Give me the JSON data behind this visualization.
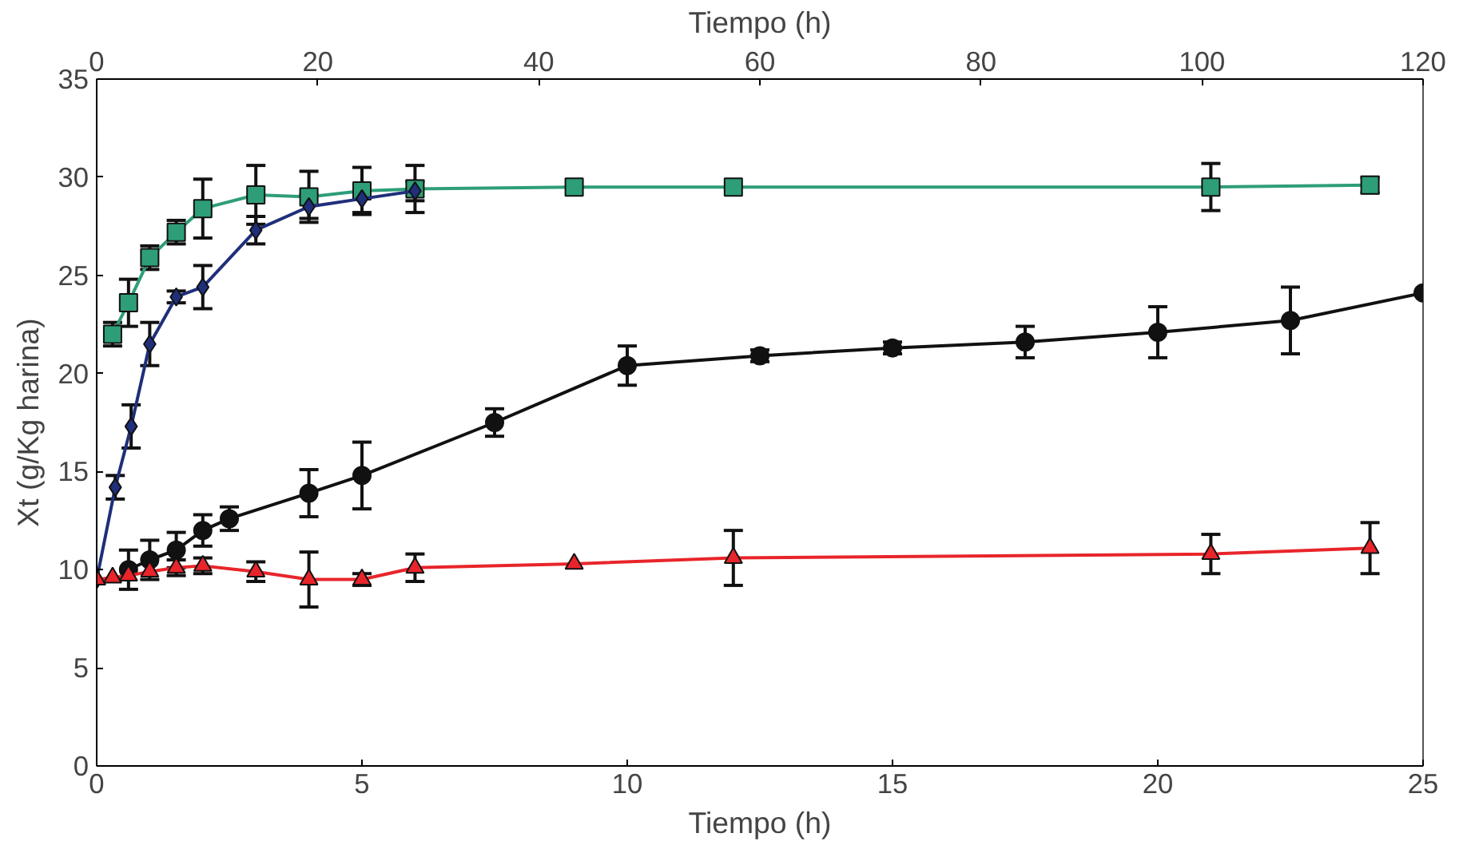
{
  "chart_data": {
    "type": "line",
    "xlabel": "Tiempo (h)",
    "ylabel": "Xt (g/Kg harina)",
    "x2label": "Tiempo (h)",
    "xlim": [
      0,
      25
    ],
    "xticks": [
      0,
      5,
      10,
      15,
      20,
      25
    ],
    "x2lim": [
      0,
      120
    ],
    "x2ticks": [
      0,
      20,
      40,
      60,
      80,
      100,
      120
    ],
    "ylim": [
      0,
      35
    ],
    "yticks": [
      0,
      5,
      10,
      15,
      20,
      25,
      30,
      35
    ],
    "grid": false,
    "line_style": "solid",
    "series": [
      {
        "color": "#2e9e78",
        "marker": "square",
        "x": [
          0.3,
          0.6,
          1,
          1.5,
          2,
          3,
          4,
          5,
          6,
          9,
          12,
          21,
          24
        ],
        "values": [
          22.0,
          23.6,
          25.9,
          27.2,
          28.4,
          29.1,
          29.0,
          29.3,
          29.4,
          29.5,
          29.5,
          29.5,
          29.6
        ],
        "errors": [
          0.6,
          1.2,
          0.6,
          0.6,
          1.5,
          1.5,
          1.3,
          1.2,
          1.2,
          null,
          null,
          1.2,
          0.4
        ]
      },
      {
        "color": "#1f2f7a",
        "marker": "diamond",
        "x": [
          0,
          0.35,
          0.65,
          1,
          1.5,
          2,
          3,
          4,
          5,
          6
        ],
        "values": [
          9.5,
          14.2,
          17.3,
          21.5,
          23.9,
          24.4,
          27.3,
          28.5,
          28.9,
          29.3
        ],
        "errors": [
          null,
          0.6,
          1.1,
          1.1,
          0.3,
          1.1,
          0.7,
          0.6,
          0.7,
          0.5
        ]
      },
      {
        "color": "#111111",
        "marker": "circle",
        "x": [
          0.6,
          1,
          1.5,
          2,
          2.5,
          4,
          5,
          7.5,
          10,
          12.5,
          15,
          17.5,
          20,
          22.5,
          25
        ],
        "values": [
          10.0,
          10.5,
          11.0,
          12.0,
          12.6,
          13.9,
          14.8,
          17.5,
          20.4,
          20.9,
          21.3,
          21.6,
          22.1,
          22.7,
          24.1
        ],
        "errors": [
          1.0,
          1.0,
          0.9,
          0.8,
          0.6,
          1.2,
          1.7,
          0.7,
          1.0,
          0.3,
          0.3,
          0.8,
          1.3,
          1.7,
          null
        ]
      },
      {
        "color": "#e8252a",
        "marker": "triangle",
        "x": [
          0,
          0.3,
          0.6,
          1,
          1.5,
          2,
          3,
          4,
          5,
          6,
          9,
          12,
          21,
          24
        ],
        "values": [
          9.5,
          9.6,
          9.7,
          9.9,
          10.1,
          10.2,
          9.9,
          9.5,
          9.5,
          10.1,
          10.3,
          10.6,
          10.8,
          11.1
        ],
        "errors": [
          null,
          null,
          null,
          null,
          0.4,
          0.4,
          0.5,
          1.4,
          0.3,
          0.7,
          null,
          1.4,
          1.0,
          1.3
        ]
      }
    ]
  }
}
